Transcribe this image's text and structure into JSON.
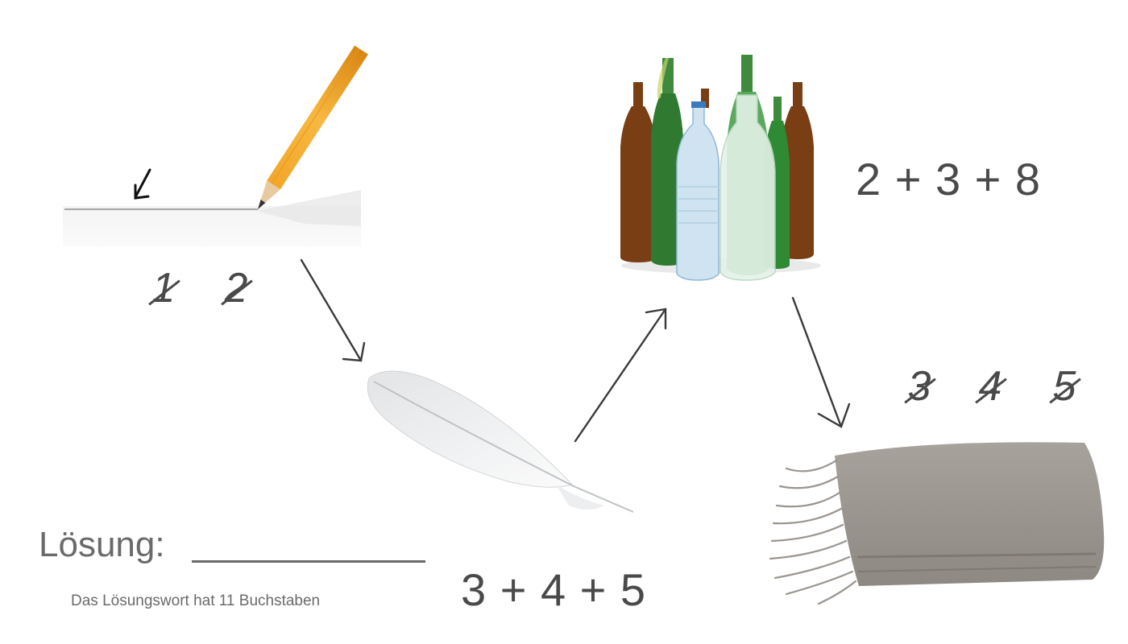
{
  "pictures": {
    "line_drawing": "pencil drawing a line",
    "feather": "white feather",
    "bottles": "glass and plastic bottles",
    "blanket": "grey blanket with fringes"
  },
  "crossed_numbers": {
    "first": [
      "1",
      "2"
    ],
    "last": [
      "3",
      "4",
      "5"
    ]
  },
  "sums": {
    "bottles": "2 + 3 + 8",
    "feather": "3 + 4 + 5"
  },
  "solution": {
    "label": "Lösung:",
    "hint": "Das Lösungswort hat 11 Buchstaben"
  },
  "colors": {
    "text": "#4a4a4a",
    "label": "#6a6a6a",
    "arrow": "#3a3a3a"
  }
}
